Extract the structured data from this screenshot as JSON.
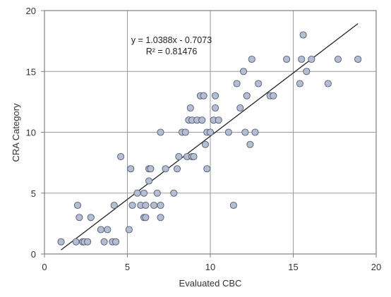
{
  "chart_data": {
    "type": "scatter",
    "xlabel": "Evaluated CBC",
    "ylabel": "CRA Category",
    "xlim": [
      0,
      20
    ],
    "ylim": [
      0,
      20
    ],
    "xticks": [
      "0",
      "5",
      "10",
      "15",
      "20"
    ],
    "yticks": [
      "0",
      "5",
      "10",
      "15",
      "20"
    ],
    "grid": true,
    "marker_color": "#b4bdd2",
    "marker_edge": "#555e72",
    "annotation": {
      "equation": "y = 1.0388x - 0.7073",
      "r_squared": "R² = 0.81476"
    },
    "trendline": {
      "slope": 1.0388,
      "intercept": -0.7073,
      "x_range": [
        1.0,
        18.9
      ]
    },
    "points": [
      [
        1.0,
        1
      ],
      [
        1.9,
        1
      ],
      [
        2.0,
        4
      ],
      [
        2.1,
        3
      ],
      [
        2.3,
        1
      ],
      [
        2.4,
        1
      ],
      [
        2.6,
        1
      ],
      [
        2.8,
        3
      ],
      [
        3.4,
        2
      ],
      [
        3.6,
        1
      ],
      [
        3.8,
        2
      ],
      [
        4.1,
        1
      ],
      [
        4.2,
        4
      ],
      [
        4.3,
        1
      ],
      [
        4.6,
        8
      ],
      [
        5.1,
        2
      ],
      [
        5.2,
        7
      ],
      [
        5.3,
        4
      ],
      [
        5.6,
        5
      ],
      [
        5.8,
        4
      ],
      [
        6.0,
        3
      ],
      [
        6.0,
        5
      ],
      [
        6.1,
        3
      ],
      [
        6.1,
        4
      ],
      [
        6.3,
        7
      ],
      [
        6.3,
        6
      ],
      [
        6.4,
        7
      ],
      [
        6.6,
        4
      ],
      [
        6.8,
        5
      ],
      [
        7.0,
        10
      ],
      [
        7.0,
        3
      ],
      [
        7.0,
        4
      ],
      [
        7.3,
        7
      ],
      [
        7.8,
        5
      ],
      [
        8.0,
        7
      ],
      [
        8.1,
        8
      ],
      [
        8.3,
        10
      ],
      [
        8.5,
        10
      ],
      [
        8.6,
        8
      ],
      [
        8.7,
        11
      ],
      [
        8.8,
        12
      ],
      [
        8.9,
        8
      ],
      [
        8.9,
        11
      ],
      [
        9.0,
        8
      ],
      [
        9.2,
        11
      ],
      [
        9.4,
        13
      ],
      [
        9.5,
        11
      ],
      [
        9.6,
        13
      ],
      [
        9.7,
        9
      ],
      [
        9.8,
        7
      ],
      [
        9.8,
        10
      ],
      [
        10.0,
        10
      ],
      [
        10.2,
        11
      ],
      [
        10.3,
        12
      ],
      [
        10.3,
        13
      ],
      [
        10.5,
        11
      ],
      [
        11.1,
        10
      ],
      [
        11.4,
        4
      ],
      [
        11.6,
        14
      ],
      [
        11.8,
        12
      ],
      [
        12.0,
        15
      ],
      [
        12.1,
        10
      ],
      [
        12.2,
        13
      ],
      [
        12.4,
        9
      ],
      [
        12.5,
        16
      ],
      [
        12.7,
        10
      ],
      [
        12.9,
        14
      ],
      [
        13.6,
        13
      ],
      [
        13.8,
        13
      ],
      [
        14.6,
        16
      ],
      [
        15.4,
        14
      ],
      [
        15.5,
        16
      ],
      [
        15.6,
        18
      ],
      [
        15.8,
        15
      ],
      [
        16.1,
        16
      ],
      [
        17.1,
        14
      ],
      [
        17.7,
        16
      ],
      [
        18.9,
        16
      ]
    ]
  }
}
